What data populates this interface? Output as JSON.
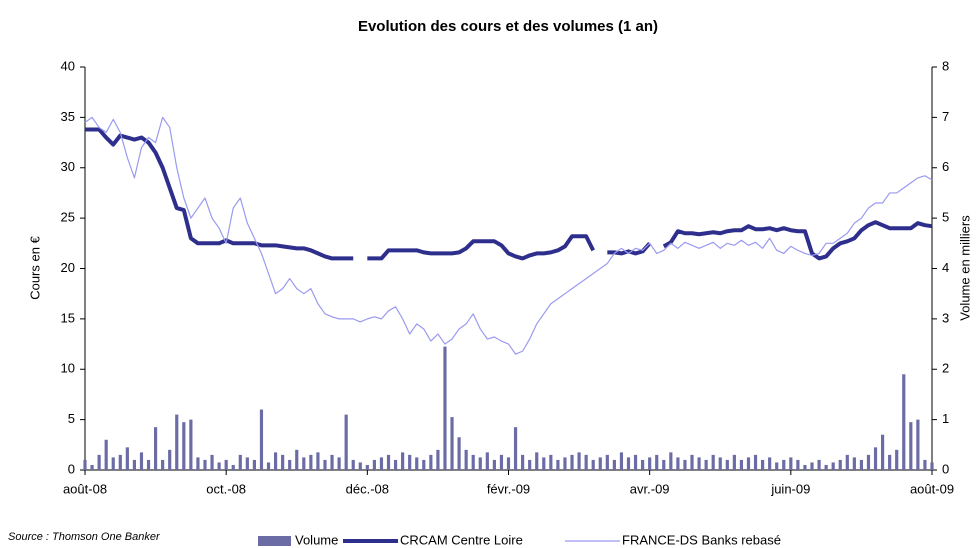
{
  "chart_data": {
    "type": "combo",
    "title": "Evolution des cours et des volumes (1 an)",
    "ylabel": "Cours en €",
    "y2label": "Volume en milliers",
    "source": "Source : Thomson One Banker",
    "legend": "bottom",
    "ylim": [
      0,
      40
    ],
    "yticks": [
      0,
      5,
      10,
      15,
      20,
      25,
      30,
      35,
      40
    ],
    "y2lim": [
      0,
      8
    ],
    "y2ticks": [
      0,
      1,
      2,
      3,
      4,
      5,
      6,
      7,
      8
    ],
    "categories": [
      "août-08",
      null,
      null,
      null,
      null,
      null,
      null,
      null,
      null,
      null,
      null,
      null,
      null,
      null,
      null,
      null,
      null,
      null,
      null,
      null,
      "oct.-08",
      null,
      null,
      null,
      null,
      null,
      null,
      null,
      null,
      null,
      null,
      null,
      null,
      null,
      null,
      null,
      null,
      null,
      null,
      null,
      "déc.-08",
      null,
      null,
      null,
      null,
      null,
      null,
      null,
      null,
      null,
      null,
      null,
      null,
      null,
      null,
      null,
      null,
      null,
      null,
      null,
      "févr.-09",
      null,
      null,
      null,
      null,
      null,
      null,
      null,
      null,
      null,
      null,
      null,
      null,
      null,
      null,
      null,
      null,
      null,
      null,
      null,
      "avr.-09",
      null,
      null,
      null,
      null,
      null,
      null,
      null,
      null,
      null,
      null,
      null,
      null,
      null,
      null,
      null,
      null,
      null,
      null,
      null,
      "juin-09",
      null,
      null,
      null,
      null,
      null,
      null,
      null,
      null,
      null,
      null,
      null,
      null,
      null,
      null,
      null,
      null,
      null,
      null,
      null,
      "août-09"
    ],
    "series": [
      {
        "name": "Volume",
        "type": "bar",
        "axis": "y2",
        "color": "#6b6ba6",
        "values": [
          0.2,
          0.1,
          0.3,
          0.6,
          0.25,
          0.3,
          0.45,
          0.2,
          0.35,
          0.2,
          0.85,
          0.2,
          0.4,
          1.1,
          0.95,
          1.0,
          0.25,
          0.2,
          0.3,
          0.15,
          0.2,
          0.1,
          0.3,
          0.25,
          0.2,
          1.2,
          0.15,
          0.35,
          0.3,
          0.2,
          0.4,
          0.25,
          0.3,
          0.35,
          0.2,
          0.3,
          0.25,
          1.1,
          0.2,
          0.15,
          0.1,
          0.2,
          0.25,
          0.3,
          0.2,
          0.35,
          0.3,
          0.25,
          0.2,
          0.3,
          0.4,
          2.45,
          1.05,
          0.65,
          0.4,
          0.3,
          0.25,
          0.35,
          0.2,
          0.3,
          0.25,
          0.85,
          0.3,
          0.2,
          0.35,
          0.25,
          0.3,
          0.2,
          0.25,
          0.3,
          0.35,
          0.3,
          0.2,
          0.25,
          0.3,
          0.2,
          0.35,
          0.25,
          0.3,
          0.2,
          0.25,
          0.3,
          0.2,
          0.35,
          0.25,
          0.2,
          0.3,
          0.25,
          0.2,
          0.3,
          0.25,
          0.2,
          0.3,
          0.2,
          0.25,
          0.3,
          0.2,
          0.25,
          0.15,
          0.2,
          0.25,
          0.2,
          0.1,
          0.15,
          0.2,
          0.1,
          0.15,
          0.2,
          0.3,
          0.25,
          0.2,
          0.3,
          0.45,
          0.7,
          0.3,
          0.4,
          1.9,
          0.95,
          1.0,
          0.2,
          0.15
        ]
      },
      {
        "name": "CRCAM Centre Loire",
        "type": "line",
        "color": "#2e2e8c",
        "width": 4,
        "values": [
          33.8,
          33.8,
          33.8,
          33,
          32.3,
          33.2,
          33,
          32.8,
          33,
          32.5,
          31.5,
          30,
          28,
          26,
          25.8,
          23,
          22.5,
          22.5,
          22.5,
          22.5,
          22.8,
          22.5,
          22.5,
          22.5,
          22.5,
          22.3,
          22.3,
          22.3,
          22.2,
          22.1,
          22,
          22,
          21.8,
          21.5,
          21.2,
          21,
          21,
          21,
          21,
          null,
          21,
          21,
          21,
          21.8,
          21.8,
          21.8,
          21.8,
          21.8,
          21.6,
          21.5,
          21.5,
          21.5,
          21.5,
          21.6,
          22,
          22.7,
          22.7,
          22.7,
          22.7,
          22.3,
          21.5,
          21.2,
          21,
          21.3,
          21.5,
          21.5,
          21.6,
          21.8,
          22.2,
          23.2,
          23.2,
          23.2,
          21.8,
          null,
          21.6,
          21.6,
          21.5,
          21.7,
          21.5,
          21.7,
          22.5,
          null,
          22.2,
          22.6,
          23.7,
          23.5,
          23.5,
          23.4,
          23.5,
          23.6,
          23.5,
          23.7,
          23.8,
          23.8,
          24.2,
          23.9,
          23.9,
          24,
          23.8,
          24,
          23.8,
          23.7,
          23.7,
          21.5,
          21,
          21.2,
          22,
          22.5,
          22.7,
          23,
          23.8,
          24.3,
          24.6,
          24.3,
          24,
          24,
          24,
          24,
          24.5,
          24.3,
          24.2
        ]
      },
      {
        "name": "FRANCE-DS Banks rebasé",
        "type": "line",
        "color": "#9a9af0",
        "width": 1.2,
        "values": [
          34.5,
          35,
          34,
          33.5,
          34.8,
          33.5,
          31,
          29,
          32,
          33,
          32.5,
          35,
          34,
          30,
          27,
          25,
          26,
          27,
          25,
          24,
          22.5,
          26,
          27,
          24.5,
          23,
          21.5,
          19.5,
          17.5,
          18,
          19,
          18,
          17.5,
          18,
          16.5,
          15.5,
          15.2,
          15,
          15,
          15,
          14.7,
          15,
          15.2,
          15,
          15.8,
          16.2,
          15,
          13.5,
          14.5,
          14,
          12.8,
          13.5,
          12.5,
          13,
          14,
          14.5,
          15.5,
          14,
          13,
          13.2,
          12.8,
          12.5,
          11.5,
          11.8,
          13,
          14.5,
          15.5,
          16.5,
          17,
          17.5,
          18,
          18.5,
          19,
          19.5,
          20,
          20.5,
          21.5,
          22,
          21.5,
          22,
          21.8,
          22.5,
          21.5,
          21.8,
          22.5,
          22,
          22.6,
          22.3,
          22,
          22.3,
          22.6,
          22,
          22.5,
          22.3,
          22.8,
          22.3,
          22.6,
          22,
          23,
          21.8,
          21.5,
          22.2,
          21.8,
          21.5,
          21.3,
          21.5,
          22.5,
          22.5,
          23,
          23.5,
          24.5,
          25,
          26,
          26.5,
          26.5,
          27.5,
          27.5,
          28,
          28.5,
          29,
          29.2,
          28.8
        ]
      }
    ]
  }
}
